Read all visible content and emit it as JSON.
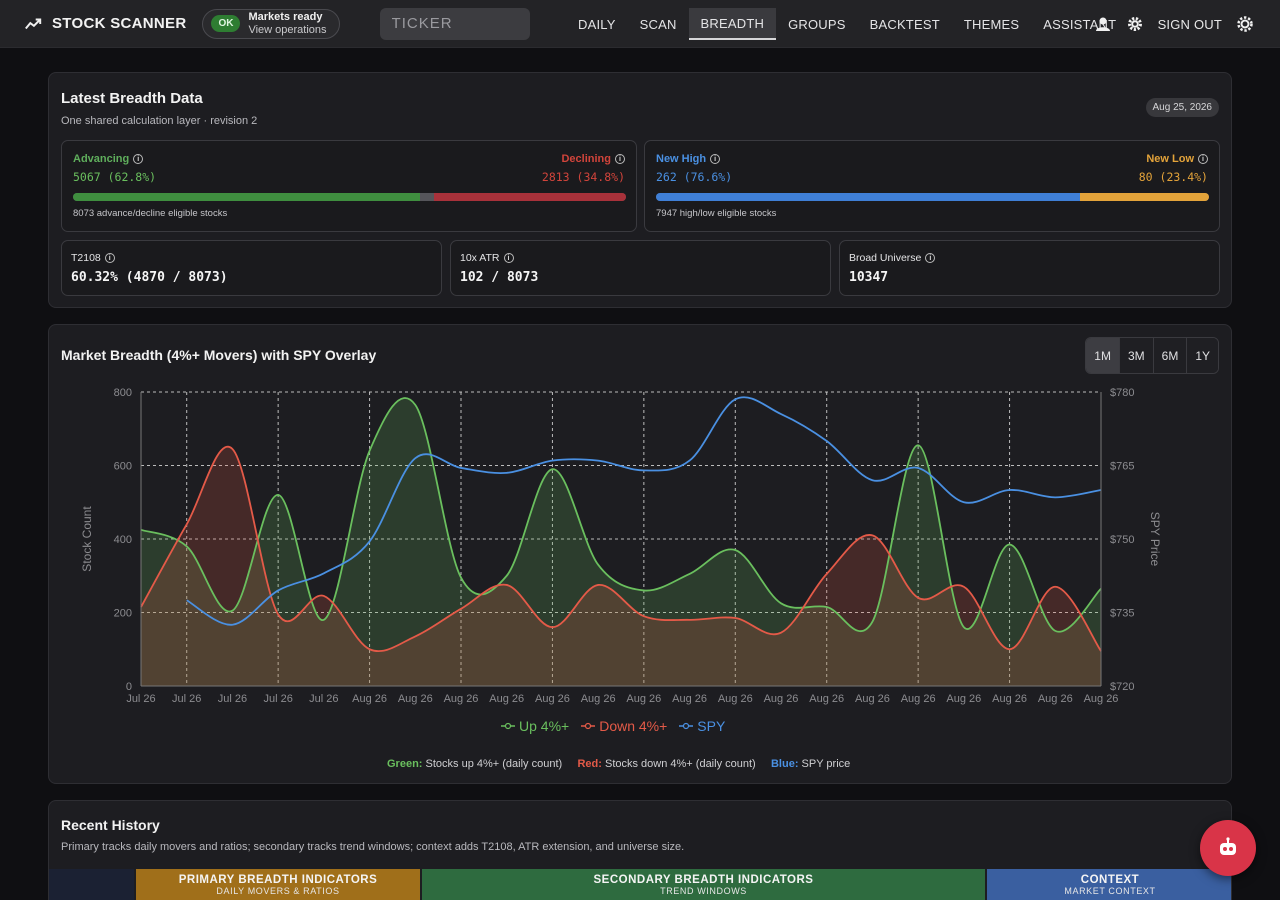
{
  "app": {
    "brand": "STOCK SCANNER",
    "status_badge": "OK",
    "status_title": "Markets ready",
    "status_link": "View operations",
    "ticker_placeholder": "TICKER",
    "nav": [
      "DAILY",
      "SCAN",
      "BREADTH",
      "GROUPS",
      "BACKTEST",
      "THEMES",
      "ASSISTANT"
    ],
    "active_nav": "BREADTH",
    "sign_out": "SIGN OUT"
  },
  "latest": {
    "title": "Latest Breadth Data",
    "subtitle": "One shared calculation layer · revision 2",
    "date": "Aug 25, 2026",
    "advancing_label": "Advancing",
    "advancing_value": "5067 (62.8%)",
    "advancing_pct": 62.8,
    "declining_label": "Declining",
    "declining_value": "2813 (34.8%)",
    "declining_pct": 34.8,
    "ad_note": "8073 advance/decline eligible stocks",
    "newhigh_label": "New High",
    "newhigh_value": "262 (76.6%)",
    "newhigh_pct": 76.6,
    "newlow_label": "New Low",
    "newlow_value": "80 (23.4%)",
    "newlow_pct": 23.4,
    "hl_note": "7947 high/low eligible stocks",
    "t2108_label": "T2108",
    "t2108_value": "60.32% (4870 / 8073)",
    "atr_label": "10x ATR",
    "atr_value": "102 / 8073",
    "universe_label": "Broad Universe",
    "universe_value": "10347"
  },
  "chart_panel": {
    "title": "Market Breadth (4%+ Movers) with SPY Overlay",
    "ranges": [
      "1M",
      "3M",
      "6M",
      "1Y"
    ],
    "active_range": "1M",
    "legend": [
      "Up 4%+",
      "Down 4%+",
      "SPY"
    ],
    "caption_green_key": "Green:",
    "caption_green": "Stocks up 4%+ (daily count)",
    "caption_red_key": "Red:",
    "caption_red": "Stocks down 4%+ (daily count)",
    "caption_blue_key": "Blue:",
    "caption_blue": "SPY price"
  },
  "chart_data": {
    "type": "line",
    "x": [
      "Jul 26",
      "Jul 26",
      "Jul 26",
      "Jul 26",
      "Jul 26",
      "Aug 26",
      "Aug 26",
      "Aug 26",
      "Aug 26",
      "Aug 26",
      "Aug 26",
      "Aug 26",
      "Aug 26",
      "Aug 26",
      "Aug 26",
      "Aug 26",
      "Aug 26",
      "Aug 26",
      "Aug 26",
      "Aug 26",
      "Aug 26",
      "Aug 26"
    ],
    "series": [
      {
        "name": "Up 4%+",
        "axis": "left",
        "color": "#6abf5e",
        "fill": true,
        "values": [
          425,
          380,
          205,
          520,
          180,
          640,
          765,
          295,
          300,
          590,
          330,
          260,
          305,
          370,
          225,
          215,
          175,
          655,
          160,
          385,
          150,
          265
        ]
      },
      {
        "name": "Down 4%+",
        "axis": "left",
        "color": "#e45a48",
        "fill": true,
        "values": [
          215,
          440,
          645,
          195,
          245,
          100,
          135,
          210,
          275,
          160,
          275,
          190,
          180,
          185,
          145,
          305,
          410,
          240,
          270,
          100,
          270,
          95
        ]
      },
      {
        "name": "SPY",
        "axis": "right",
        "color": "#4a90e2",
        "fill": false,
        "values": [
          null,
          737.5,
          732.5,
          739.5,
          743.0,
          749.5,
          766.5,
          764.5,
          763.5,
          766.0,
          766.0,
          764.0,
          766.0,
          778.5,
          775.5,
          770.0,
          762.0,
          764.5,
          757.5,
          760.0,
          758.5,
          760.0
        ]
      }
    ],
    "ylabel": "Stock Count",
    "y2label": "SPY Price",
    "ylim": [
      0,
      800
    ],
    "y2lim": [
      720,
      780
    ],
    "yticks": [
      0,
      200,
      400,
      600,
      800
    ],
    "y2ticks": [
      720,
      735,
      750,
      765,
      780
    ],
    "y2tick_labels": [
      "$720",
      "$735",
      "$750",
      "$765",
      "$780"
    ],
    "grid": true,
    "legend": "bottom"
  },
  "history": {
    "title": "Recent History",
    "subtitle": "Primary tracks daily movers and ratios; secondary tracks trend windows; context adds T2108, ATR extension, and universe size.",
    "groups": [
      {
        "title": "PRIMARY BREADTH INDICATORS",
        "sub": "DAILY MOVERS & RATIOS",
        "color": "#a06f1a"
      },
      {
        "title": "SECONDARY BREADTH INDICATORS",
        "sub": "TREND WINDOWS",
        "color": "#2e6b3f"
      },
      {
        "title": "CONTEXT",
        "sub": "MARKET CONTEXT",
        "color": "#3a5fa0"
      }
    ]
  }
}
